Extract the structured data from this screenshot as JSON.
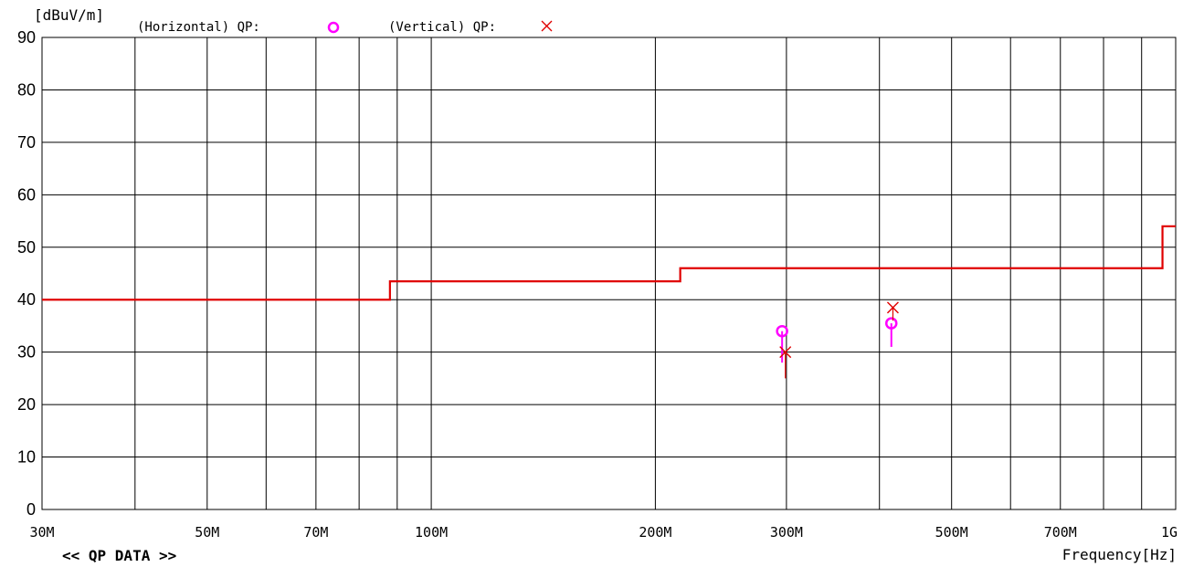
{
  "chart_data": {
    "type": "scatter",
    "ylabel": "[dBuV/m]",
    "xlabel": "Frequency[Hz]",
    "footer": "<< QP DATA >>",
    "x_scale": "log",
    "xlim": [
      30000000,
      1000000000
    ],
    "ylim": [
      0,
      90
    ],
    "grid": true,
    "y_ticks": [
      {
        "value": 0,
        "label": "0"
      },
      {
        "value": 10,
        "label": "10"
      },
      {
        "value": 20,
        "label": "20"
      },
      {
        "value": 30,
        "label": "30"
      },
      {
        "value": 40,
        "label": "40"
      },
      {
        "value": 50,
        "label": "50"
      },
      {
        "value": 60,
        "label": "60"
      },
      {
        "value": 70,
        "label": "70"
      },
      {
        "value": 80,
        "label": "80"
      },
      {
        "value": 90,
        "label": "90"
      }
    ],
    "x_grid": [
      40000000,
      50000000,
      60000000,
      70000000,
      80000000,
      90000000,
      100000000,
      200000000,
      300000000,
      400000000,
      500000000,
      600000000,
      700000000,
      800000000,
      900000000
    ],
    "x_tick_labels": [
      {
        "value": 30000000,
        "label": "30M"
      },
      {
        "value": 50000000,
        "label": "50M"
      },
      {
        "value": 70000000,
        "label": "70M"
      },
      {
        "value": 100000000,
        "label": "100M"
      },
      {
        "value": 200000000,
        "label": "200M"
      },
      {
        "value": 300000000,
        "label": "300M"
      },
      {
        "value": 500000000,
        "label": "500M"
      },
      {
        "value": 700000000,
        "label": "700M"
      },
      {
        "value": 1000000000,
        "label": "1G"
      }
    ],
    "limit_line": {
      "color": "#e00000",
      "segments": [
        {
          "f_start": 30000000,
          "f_end": 88000000,
          "level": 40.0
        },
        {
          "f_start": 88000000,
          "f_end": 216000000,
          "level": 43.5
        },
        {
          "f_start": 216000000,
          "f_end": 960000000,
          "level": 46.0
        },
        {
          "f_start": 960000000,
          "f_end": 1000000000,
          "level": 54.0
        }
      ]
    },
    "series": [
      {
        "name": "(Horizontal) QP:",
        "marker": "circle",
        "color": "#ff00ff",
        "points": [
          {
            "x": 296000000,
            "y": 34.0,
            "peak": 28.0
          },
          {
            "x": 415000000,
            "y": 35.5,
            "peak": 31.0
          }
        ]
      },
      {
        "name": "(Vertical) QP:",
        "marker": "cross",
        "color": "#e00000",
        "points": [
          {
            "x": 299000000,
            "y": 30.0,
            "peak": 25.0
          },
          {
            "x": 417000000,
            "y": 38.5,
            "peak": 36.0
          }
        ]
      }
    ]
  }
}
